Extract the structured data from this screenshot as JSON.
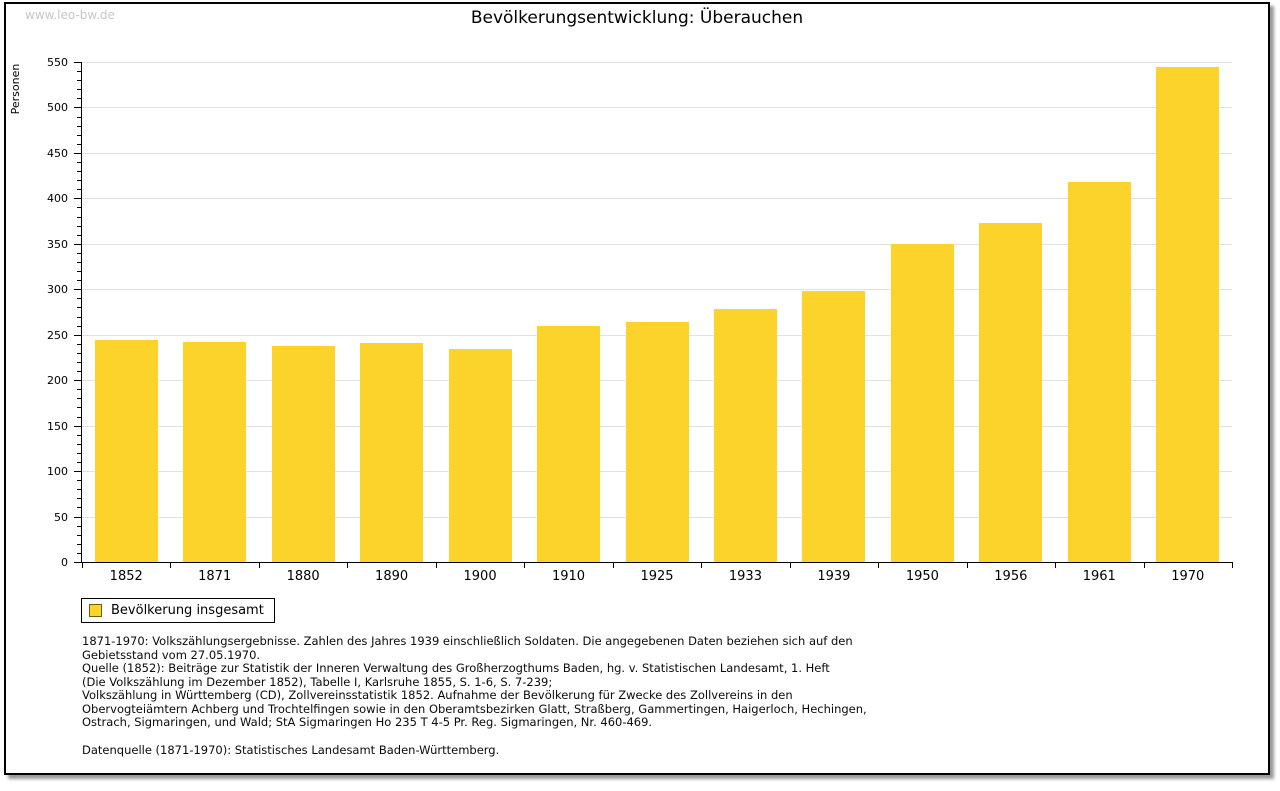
{
  "watermark": "www.leo-bw.de",
  "title": "Bevölkerungsentwicklung: Überauchen",
  "chart_data": {
    "type": "bar",
    "title": "Bevölkerungsentwicklung: Überauchen",
    "xlabel": "",
    "ylabel": "Personen",
    "categories": [
      "1852",
      "1871",
      "1880",
      "1890",
      "1900",
      "1910",
      "1925",
      "1933",
      "1939",
      "1950",
      "1956",
      "1961",
      "1970"
    ],
    "series": [
      {
        "name": "Bevölkerung insgesamt",
        "values": [
          244,
          242,
          238,
          241,
          234,
          260,
          264,
          278,
          298,
          350,
          373,
          418,
          545
        ]
      }
    ],
    "ylim": [
      0,
      550
    ],
    "y_major_step": 50,
    "y_minor_step": 10,
    "grid": true,
    "legend_position": "bottom-left",
    "bar_color": "#fcd32b",
    "gridline_color": "#e2e2e2"
  },
  "legend": {
    "label": "Bevölkerung insgesamt",
    "swatch_color": "#fcd32b"
  },
  "footnotes": {
    "lines": [
      "1871-1970: Volkszählungsergebnisse. Zahlen des Jahres 1939 einschließlich Soldaten. Die angegebenen Daten beziehen sich auf den",
      "Gebietsstand vom 27.05.1970.",
      "Quelle (1852): Beiträge zur Statistik der Inneren Verwaltung des Großherzogthums Baden, hg. v. Statistischen Landesamt, 1. Heft",
      "(Die Volkszählung im Dezember 1852), Tabelle I, Karlsruhe 1855, S. 1-6, S. 7-239;",
      "Volkszählung in Württemberg (CD), Zollvereinsstatistik 1852. Aufnahme der Bevölkerung für Zwecke des Zollvereins in den",
      "Obervogteiämtern Achberg und Trochtelfingen sowie in den Oberamtsbezirken Glatt, Straßberg, Gammertingen, Haigerloch, Hechingen,",
      "Ostrach, Sigmaringen, und Wald; StA Sigmaringen Ho 235 T 4-5 Pr. Reg. Sigmaringen, Nr. 460-469."
    ],
    "datasource": "Datenquelle (1871-1970): Statistisches Landesamt Baden-Württemberg."
  }
}
